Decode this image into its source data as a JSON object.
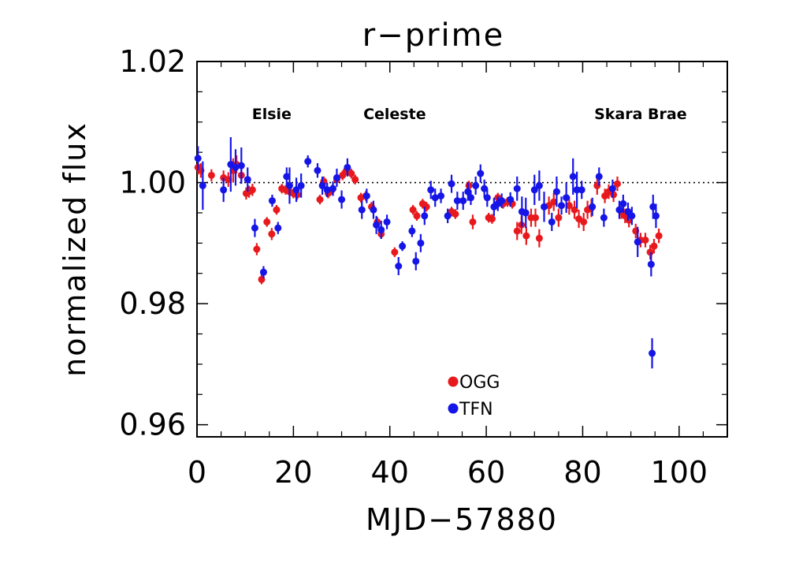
{
  "chart_data": {
    "type": "scatter",
    "title": "r−prime",
    "xlabel": "MJD−57880",
    "ylabel": "normalized flux",
    "xlim": [
      0,
      110
    ],
    "ylim": [
      0.958,
      1.02
    ],
    "x_ticks": [
      0,
      20,
      40,
      60,
      80,
      100
    ],
    "x_tick_labels": [
      "0",
      "20",
      "40",
      "60",
      "80",
      "100"
    ],
    "y_ticks": [
      0.96,
      0.98,
      1.0,
      1.02
    ],
    "y_tick_labels": [
      "0.96",
      "0.98",
      "1.00",
      "1.02"
    ],
    "reference_line": {
      "y": 1.0,
      "style": "dotted"
    },
    "annotations": [
      {
        "text": "Elsie",
        "x": 15.5,
        "y": 1.0105
      },
      {
        "text": "Celeste",
        "x": 41,
        "y": 1.0105
      },
      {
        "text": "Skara Brae",
        "x": 92,
        "y": 1.0105
      }
    ],
    "legend": {
      "placement": "bottom-center"
    },
    "colors": {
      "OGG": "#e8191d",
      "TFN": "#1515e8"
    },
    "series": [
      {
        "name": "OGG",
        "color": "#e8191d",
        "points": [
          [
            0.2,
            1.0025,
            0.0012
          ],
          [
            0.8,
            1.002,
            0.0012
          ],
          [
            3.0,
            1.0012,
            0.001
          ],
          [
            5.5,
            1.0008,
            0.0012
          ],
          [
            6.5,
            1.0005,
            0.0012
          ],
          [
            7.5,
            1.002,
            0.002
          ],
          [
            8.2,
            1.003,
            0.0015
          ],
          [
            9.2,
            1.0012,
            0.0012
          ],
          [
            10.2,
            0.9982,
            0.001
          ],
          [
            10.8,
            0.9985,
            0.001
          ],
          [
            11.5,
            0.9988,
            0.001
          ],
          [
            12.4,
            0.989,
            0.001
          ],
          [
            13.4,
            0.984,
            0.0008
          ],
          [
            14.5,
            0.9935,
            0.0008
          ],
          [
            15.5,
            0.9915,
            0.001
          ],
          [
            16.5,
            0.9955,
            0.0008
          ],
          [
            17.6,
            0.999,
            0.0008
          ],
          [
            18.4,
            0.9988,
            0.0008
          ],
          [
            19.2,
            0.9985,
            0.0008
          ],
          [
            20.0,
            0.9982,
            0.0008
          ],
          [
            20.8,
            0.998,
            0.0008
          ],
          [
            25.5,
            0.9972,
            0.0008
          ],
          [
            26.3,
            1.0002,
            0.0008
          ],
          [
            27.2,
            0.9982,
            0.0008
          ],
          [
            28.0,
            0.9988,
            0.0008
          ],
          [
            29.0,
            1.0005,
            0.0008
          ],
          [
            30.2,
            1.0012,
            0.0008
          ],
          [
            31.0,
            1.002,
            0.0008
          ],
          [
            32.0,
            1.0015,
            0.0008
          ],
          [
            32.8,
            1.0005,
            0.0008
          ],
          [
            34.0,
            0.9975,
            0.0008
          ],
          [
            35.0,
            0.9978,
            0.0008
          ],
          [
            36.2,
            0.996,
            0.0008
          ],
          [
            37.4,
            0.9935,
            0.0008
          ],
          [
            38.2,
            0.9915,
            0.0008
          ],
          [
            41.0,
            0.9885,
            0.0008
          ],
          [
            44.8,
            0.9955,
            0.0008
          ],
          [
            45.6,
            0.9945,
            0.0008
          ],
          [
            46.8,
            0.9965,
            0.0008
          ],
          [
            47.6,
            0.996,
            0.0008
          ],
          [
            52.8,
            0.9952,
            0.0008
          ],
          [
            53.6,
            0.9948,
            0.0008
          ],
          [
            56.4,
            0.9995,
            0.0008
          ],
          [
            57.2,
            0.9935,
            0.0012
          ],
          [
            60.5,
            0.9942,
            0.0008
          ],
          [
            61.2,
            0.994,
            0.0008
          ],
          [
            62.4,
            0.9975,
            0.0008
          ],
          [
            63.5,
            0.9965,
            0.0008
          ],
          [
            64.4,
            0.9968,
            0.0008
          ],
          [
            65.4,
            0.9965,
            0.0008
          ],
          [
            66.4,
            0.992,
            0.0015
          ],
          [
            67.3,
            0.993,
            0.0015
          ],
          [
            68.3,
            0.9912,
            0.0015
          ],
          [
            69.3,
            0.9942,
            0.0015
          ],
          [
            70.2,
            0.9942,
            0.0015
          ],
          [
            71.0,
            0.9908,
            0.0015
          ],
          [
            73.0,
            0.9962,
            0.0015
          ],
          [
            74.0,
            0.9968,
            0.0015
          ],
          [
            75.0,
            0.9942,
            0.0015
          ],
          [
            77.2,
            0.9962,
            0.0015
          ],
          [
            78.3,
            0.9955,
            0.0015
          ],
          [
            79.2,
            0.994,
            0.0015
          ],
          [
            80.2,
            0.9935,
            0.0015
          ],
          [
            81.0,
            0.9955,
            0.0015
          ],
          [
            81.8,
            0.9958,
            0.0015
          ],
          [
            83.0,
            0.9995,
            0.0015
          ],
          [
            84.6,
            0.9978,
            0.0012
          ],
          [
            85.4,
            0.9985,
            0.0012
          ],
          [
            86.4,
            0.998,
            0.0012
          ],
          [
            87.2,
            0.9998,
            0.0012
          ],
          [
            88.0,
            0.9952,
            0.0012
          ],
          [
            88.8,
            0.9945,
            0.0012
          ],
          [
            89.6,
            0.9938,
            0.0012
          ],
          [
            91.0,
            0.992,
            0.0012
          ],
          [
            92.0,
            0.9905,
            0.0012
          ],
          [
            93.0,
            0.9905,
            0.0012
          ],
          [
            94.0,
            0.9885,
            0.0012
          ],
          [
            94.8,
            0.9895,
            0.0012
          ],
          [
            95.8,
            0.9912,
            0.0012
          ]
        ]
      },
      {
        "name": "TFN",
        "color": "#1515e8",
        "points": [
          [
            0.2,
            1.004,
            0.002
          ],
          [
            1.2,
            0.9995,
            0.004
          ],
          [
            5.5,
            0.9988,
            0.002
          ],
          [
            7.0,
            1.003,
            0.0045
          ],
          [
            8.0,
            1.0025,
            0.003
          ],
          [
            9.2,
            1.0028,
            0.003
          ],
          [
            10.5,
            1.0005,
            0.002
          ],
          [
            12.0,
            0.9925,
            0.0015
          ],
          [
            13.8,
            0.9852,
            0.001
          ],
          [
            15.6,
            0.997,
            0.001
          ],
          [
            16.8,
            0.9925,
            0.001
          ],
          [
            18.6,
            1.001,
            0.0015
          ],
          [
            19.2,
            0.9995,
            0.003
          ],
          [
            20.6,
            0.9988,
            0.002
          ],
          [
            21.6,
            0.9995,
            0.002
          ],
          [
            23.0,
            1.0035,
            0.001
          ],
          [
            25.0,
            1.002,
            0.0012
          ],
          [
            26.0,
            0.9995,
            0.0015
          ],
          [
            27.0,
            0.9988,
            0.0012
          ],
          [
            28.2,
            0.999,
            0.0012
          ],
          [
            29.0,
            1.0008,
            0.0015
          ],
          [
            30.0,
            0.9972,
            0.0015
          ],
          [
            31.2,
            1.0025,
            0.0015
          ],
          [
            34.2,
            0.9955,
            0.0015
          ],
          [
            35.2,
            0.9978,
            0.0012
          ],
          [
            36.6,
            0.9955,
            0.0015
          ],
          [
            37.2,
            0.993,
            0.0015
          ],
          [
            38.2,
            0.9922,
            0.0015
          ],
          [
            39.4,
            0.9935,
            0.0012
          ],
          [
            41.8,
            0.9862,
            0.0015
          ],
          [
            42.6,
            0.9895,
            0.0008
          ],
          [
            44.6,
            0.992,
            0.001
          ],
          [
            45.4,
            0.987,
            0.0015
          ],
          [
            46.4,
            0.99,
            0.0015
          ],
          [
            47.2,
            0.9945,
            0.0015
          ],
          [
            48.5,
            0.9988,
            0.0015
          ],
          [
            49.4,
            0.9975,
            0.0015
          ],
          [
            50.6,
            0.9978,
            0.0012
          ],
          [
            52.0,
            0.9945,
            0.0012
          ],
          [
            52.8,
            0.9998,
            0.0015
          ],
          [
            54.0,
            0.997,
            0.0015
          ],
          [
            55.2,
            0.997,
            0.0015
          ],
          [
            56.2,
            0.9985,
            0.0015
          ],
          [
            56.8,
            0.9975,
            0.0012
          ],
          [
            57.8,
            0.9995,
            0.0015
          ],
          [
            58.8,
            1.0015,
            0.0015
          ],
          [
            59.6,
            0.999,
            0.0015
          ],
          [
            60.2,
            0.9975,
            0.0015
          ],
          [
            61.6,
            0.996,
            0.0015
          ],
          [
            62.4,
            0.9965,
            0.0012
          ],
          [
            63.2,
            0.997,
            0.0012
          ],
          [
            65.0,
            0.9972,
            0.0012
          ],
          [
            66.4,
            0.999,
            0.002
          ],
          [
            67.4,
            0.9952,
            0.0025
          ],
          [
            68.2,
            0.995,
            0.0025
          ],
          [
            70.0,
            0.9988,
            0.0025
          ],
          [
            71.0,
            0.9995,
            0.0025
          ],
          [
            72.0,
            0.996,
            0.0025
          ],
          [
            73.6,
            0.9935,
            0.0015
          ],
          [
            74.6,
            0.9985,
            0.0025
          ],
          [
            75.6,
            0.9962,
            0.0015
          ],
          [
            76.6,
            0.9975,
            0.0025
          ],
          [
            78.0,
            1.001,
            0.003
          ],
          [
            78.8,
            0.9988,
            0.003
          ],
          [
            79.8,
            0.9988,
            0.0015
          ],
          [
            82.0,
            0.996,
            0.0015
          ],
          [
            83.4,
            1.001,
            0.0015
          ],
          [
            84.4,
            0.9942,
            0.0015
          ],
          [
            86.2,
            0.999,
            0.0015
          ],
          [
            87.6,
            0.9955,
            0.0015
          ],
          [
            88.4,
            0.9965,
            0.0015
          ],
          [
            89.4,
            0.9952,
            0.0015
          ],
          [
            90.2,
            0.9945,
            0.0015
          ],
          [
            91.4,
            0.9902,
            0.0025
          ],
          [
            94.2,
            0.9865,
            0.002
          ],
          [
            94.6,
            0.996,
            0.002
          ],
          [
            95.2,
            0.9945,
            0.002
          ],
          [
            94.4,
            0.9718,
            0.0025
          ]
        ]
      }
    ]
  }
}
